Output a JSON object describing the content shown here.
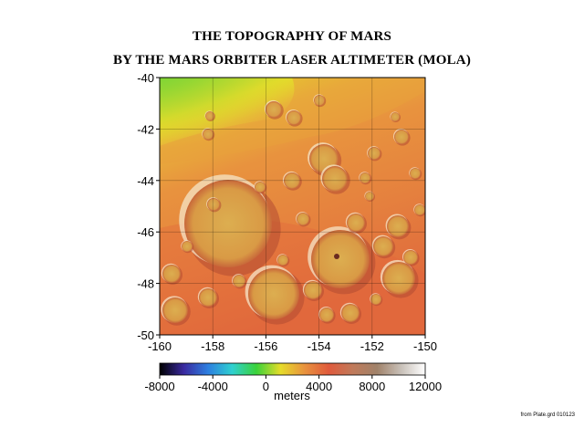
{
  "title_line1": "THE TOPOGRAPHY OF MARS",
  "title_line2": "BY THE MARS ORBITER LASER ALTIMETER (MOLA)",
  "map": {
    "lon_range": [
      -160,
      -150
    ],
    "lat_range": [
      -50,
      -40
    ],
    "x_ticks": [
      "-160",
      "-158",
      "-156",
      "-154",
      "-152",
      "-150"
    ],
    "y_ticks": [
      "-40",
      "-42",
      "-44",
      "-46",
      "-48",
      "-50"
    ],
    "grid": true,
    "colors": {
      "low_green": "#3fd23a",
      "yellow": "#e6dc2a",
      "orange": "#e8933e",
      "red": "#e05a3c",
      "crater_floor": "#d9a44a"
    }
  },
  "colorbar": {
    "ticks": [
      "-8000",
      "-4000",
      "0",
      "4000",
      "8000",
      "12000"
    ],
    "unit": "meters",
    "range": [
      -8000,
      12000
    ],
    "stops": [
      "#000000",
      "#3a2aa0",
      "#2d7fe0",
      "#2fd0d0",
      "#3ad23a",
      "#e6dc2a",
      "#e8933e",
      "#e05a3c",
      "#c07a5a",
      "#a0826a",
      "#c8c0b8",
      "#ffffff"
    ]
  },
  "source_note": "from Plate.grd 010123"
}
